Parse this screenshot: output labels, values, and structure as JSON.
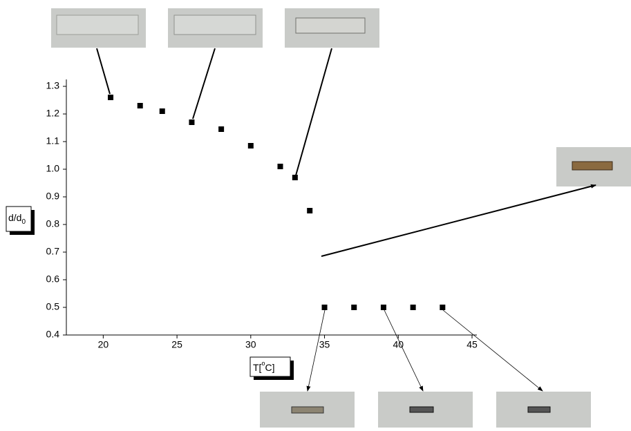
{
  "chart_data": {
    "type": "scatter",
    "ylabel": [
      "d/d",
      "0"
    ],
    "xlabel": [
      "T[",
      "o",
      "C]"
    ],
    "x": [
      20.5,
      22.5,
      24,
      26,
      28,
      30,
      32,
      33,
      34,
      35,
      37,
      39,
      41,
      43
    ],
    "values": [
      1.26,
      1.23,
      1.21,
      1.17,
      1.145,
      1.085,
      1.01,
      0.97,
      0.85,
      0.5,
      0.5,
      0.5,
      0.5,
      0.5
    ],
    "color": "#000000",
    "xlim": [
      17.5,
      45
    ],
    "xticks": [
      20,
      25,
      30,
      35,
      40,
      45
    ],
    "ylim": [
      0.4,
      1.3
    ],
    "yticks": [
      0.4,
      0.5,
      0.6,
      0.7,
      0.8,
      0.9,
      {
        "value": 1,
        "label": "1.0"
      },
      1.1,
      1.2,
      1.3
    ]
  }
}
